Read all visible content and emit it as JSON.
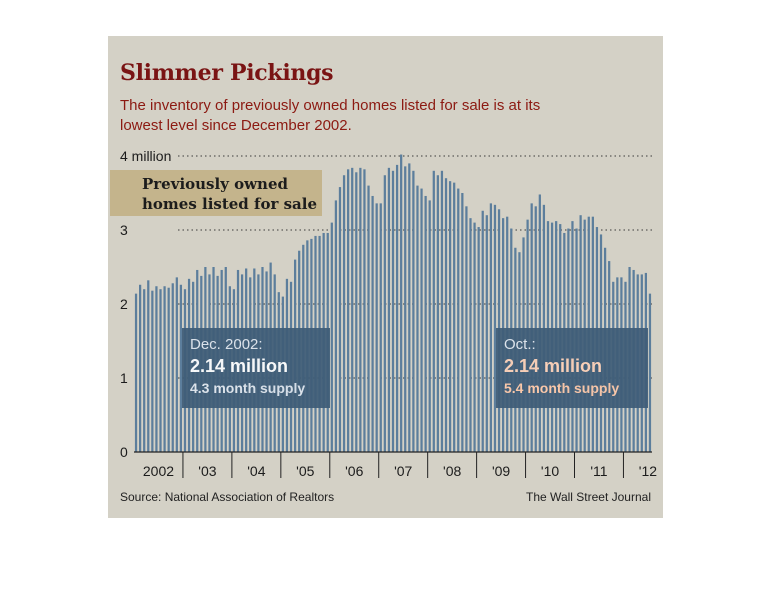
{
  "headline": "Slimmer Pickings",
  "subtitle": "The inventory of previously owned homes listed for sale is at its lowest level since December 2002.",
  "legend": "Previously owned homes listed for sale",
  "source": "Source: National Association of Realtors",
  "credit": "The Wall Street Journal",
  "colors": {
    "bar": "#5c7e9c",
    "callout": "#3f5d78",
    "headline": "#7a1414",
    "subtitle": "#8c1a12",
    "legend_box": "#c4b48c"
  },
  "annotations": [
    {
      "label": "Dec. 2002:",
      "value": "2.14 million",
      "supply": "4.3 month supply"
    },
    {
      "label": "Oct.:",
      "value": "2.14 million",
      "supply": "5.4 month supply"
    }
  ],
  "chart_data": {
    "type": "bar",
    "unit": "million",
    "ylim": [
      0,
      4
    ],
    "y_ticks": [
      {
        "value": 0,
        "label": "0"
      },
      {
        "value": 1,
        "label": "1"
      },
      {
        "value": 2,
        "label": "2"
      },
      {
        "value": 3,
        "label": "3"
      },
      {
        "value": 4,
        "label": "4 million"
      }
    ],
    "x_tick_labels": [
      "2002",
      "'03",
      "'04",
      "'05",
      "'06",
      "'07",
      "'08",
      "'09",
      "'10",
      "'11",
      "'12"
    ],
    "grid": "horizontal dotted",
    "series": [
      {
        "values": [
          2.14,
          2.26,
          2.2,
          2.32,
          2.18,
          2.24,
          2.2,
          2.24,
          2.22,
          2.28,
          2.36,
          2.26,
          2.2,
          2.34,
          2.3,
          2.46,
          2.38,
          2.5,
          2.4,
          2.5,
          2.38,
          2.46,
          2.5,
          2.24,
          2.2,
          2.46,
          2.4,
          2.48,
          2.36,
          2.48,
          2.4,
          2.5,
          2.44,
          2.56,
          2.4,
          2.16,
          2.1,
          2.34,
          2.3,
          2.6,
          2.72,
          2.8,
          2.86,
          2.88,
          2.92,
          2.92,
          2.96,
          2.96,
          3.1,
          3.4,
          3.58,
          3.74,
          3.82,
          3.84,
          3.78,
          3.84,
          3.82,
          3.6,
          3.46,
          3.36,
          3.36,
          3.74,
          3.84,
          3.8,
          3.88,
          4.02,
          3.86,
          3.9,
          3.8,
          3.6,
          3.56,
          3.46,
          3.4,
          3.8,
          3.74,
          3.8,
          3.7,
          3.66,
          3.64,
          3.56,
          3.5,
          3.32,
          3.16,
          3.1,
          3.04,
          3.26,
          3.2,
          3.36,
          3.34,
          3.28,
          3.16,
          3.18,
          3.02,
          2.76,
          2.7,
          2.9,
          3.14,
          3.36,
          3.32,
          3.48,
          3.34,
          3.12,
          3.1,
          3.12,
          3.08,
          2.96,
          3.02,
          3.12,
          3.02,
          3.2,
          3.14,
          3.18,
          3.18,
          3.04,
          2.94,
          2.76,
          2.58,
          2.3,
          2.36,
          2.36,
          2.3,
          2.5,
          2.46,
          2.4,
          2.4,
          2.42,
          2.14
        ]
      }
    ]
  }
}
